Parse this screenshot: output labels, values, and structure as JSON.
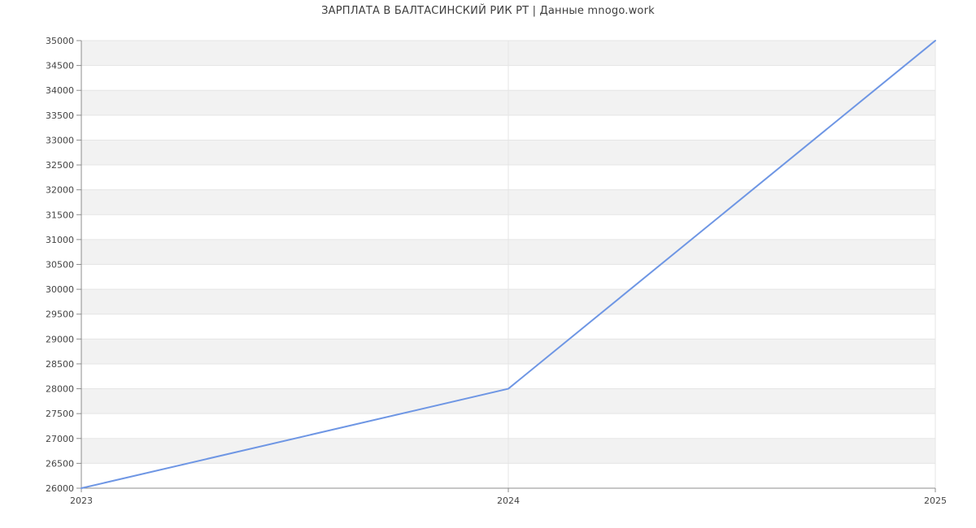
{
  "chart_data": {
    "type": "line",
    "title": "ЗАРПЛАТА В БАЛТАСИНСКИЙ РИК РТ | Данные mnogo.work",
    "x": [
      "2023",
      "2024",
      "2025"
    ],
    "values": [
      26000,
      28000,
      35000
    ],
    "ylim": [
      26000,
      35000
    ],
    "yticks": [
      26000,
      26500,
      27000,
      27500,
      28000,
      28500,
      29000,
      29500,
      30000,
      30500,
      31000,
      31500,
      32000,
      32500,
      33000,
      33500,
      34000,
      34500,
      35000
    ],
    "grid": true,
    "legend_position": "none",
    "line_color": "#6e96e4",
    "band_color": "#f2f2f2",
    "grid_color": "#e5e5e5",
    "axis_color": "#8c8c8c",
    "label_color": "#444444",
    "title_color": "#3d3d3d",
    "background_color": "#ffffff"
  }
}
